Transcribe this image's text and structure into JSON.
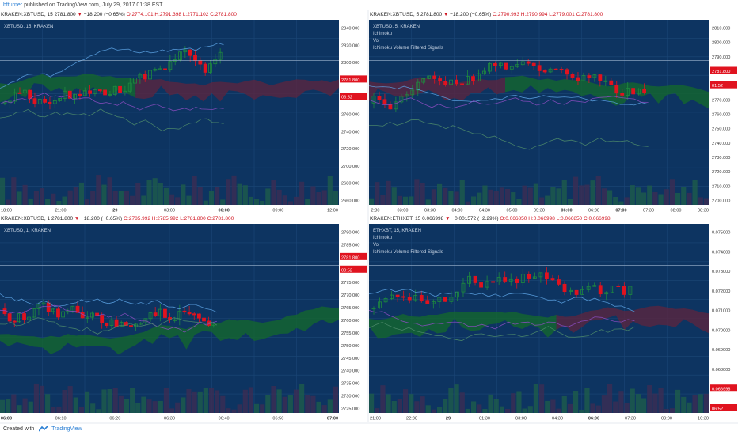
{
  "publish": {
    "author": "bfturner",
    "text": " published on TradingView.com, July 29, 2017 01:38 EST"
  },
  "footer": {
    "created_with": "Created with",
    "brand": "TradingView"
  },
  "panes": [
    {
      "header": {
        "symbol": "KRAKEN:XBTUSD, 15",
        "last": "2781.800",
        "arrow": "▼",
        "change": "−18.200 (−0.65%)",
        "o": "O:2774.101",
        "h": "H:2791.398",
        "l": "L:2771.102",
        "c": "C:2781.800"
      },
      "legend": [
        "XBTUSD, 15, KRAKEN"
      ],
      "price_labels": [
        "2840.000",
        "2820.000",
        "2800.000",
        "2781.800",
        "06:52",
        "2760.000",
        "2740.000",
        "2720.000",
        "2700.000",
        "2680.000",
        "2660.000"
      ],
      "time_labels": [
        "18:00",
        "21:00",
        "29",
        "03:00",
        "06:00",
        "09:00",
        "12:00"
      ]
    },
    {
      "header": {
        "symbol": "KRAKEN:XBTUSD, 5",
        "last": "2781.800",
        "arrow": "▼",
        "change": "−18.200 (−0.65%)",
        "o": "O:2790.993",
        "h": "H:2790.994",
        "l": "L:2779.001",
        "c": "C:2781.800"
      },
      "legend": [
        "XBTUSD, 5, KRAKEN",
        "Ichimoku",
        "Vol",
        "Ichimoku Volume Filtered Signals"
      ],
      "price_labels": [
        "2810.000",
        "2800.000",
        "2790.000",
        "2781.800",
        "01:52",
        "2770.000",
        "2760.000",
        "2750.000",
        "2740.000",
        "2730.000",
        "2720.000",
        "2710.000",
        "2700.000"
      ],
      "time_labels": [
        "2:30",
        "03:00",
        "03:30",
        "04:00",
        "04:30",
        "05:00",
        "05:30",
        "06:00",
        "06:30",
        "07:00",
        "07:30",
        "08:00",
        "08:30"
      ]
    },
    {
      "header": {
        "symbol": "KRAKEN:XBTUSD, 1",
        "last": "2781.800",
        "arrow": "▼",
        "change": "−18.200 (−0.65%)",
        "o": "O:2785.992",
        "h": "H:2785.992",
        "l": "L:2781.800",
        "c": "C:2781.800"
      },
      "legend": [
        "XBTUSD, 1, KRAKEN"
      ],
      "price_labels": [
        "2790.000",
        "2785.000",
        "2781.800",
        "00:52",
        "2775.000",
        "2770.000",
        "2765.000",
        "2760.000",
        "2755.000",
        "2750.000",
        "2745.000",
        "2740.000",
        "2735.000",
        "2730.000",
        "2725.000"
      ],
      "time_labels": [
        "06:00",
        "06:10",
        "06:20",
        "06:30",
        "06:40",
        "06:50",
        "07:00"
      ]
    },
    {
      "header": {
        "symbol": "KRAKEN:ETHXBT, 15",
        "last": "0.066998",
        "arrow": "▼",
        "change": "−0.001572 (−2.29%)",
        "o": "O:0.066850",
        "h": "H:0.066998",
        "l": "L:0.066850",
        "c": "C:0.066998"
      },
      "legend": [
        "ETHXBT, 15, KRAKEN",
        "Ichimoku",
        "Vol",
        "Ichimoku Volume Filtered Signals"
      ],
      "price_labels": [
        "0.075000",
        "0.074000",
        "0.073000",
        "0.072000",
        "0.071000",
        "0.070000",
        "0.069000",
        "0.068000",
        "0.066998",
        "06:52"
      ],
      "time_labels": [
        "21:00",
        "22:30",
        "29",
        "01:30",
        "03:00",
        "04:30",
        "06:00",
        "07:30",
        "09:00",
        "10:30"
      ]
    }
  ],
  "colors": {
    "bg": "#0d3461",
    "grid": "#1c4777",
    "up": "#1e8a3e",
    "down": "#e0131f",
    "cloud_green": "#14662e",
    "cloud_red": "#5a2540",
    "tenkan": "#5aa0e0",
    "kijun": "#8a4cc0",
    "chikou": "#4c8a6a",
    "text": "#c8d4e4"
  }
}
